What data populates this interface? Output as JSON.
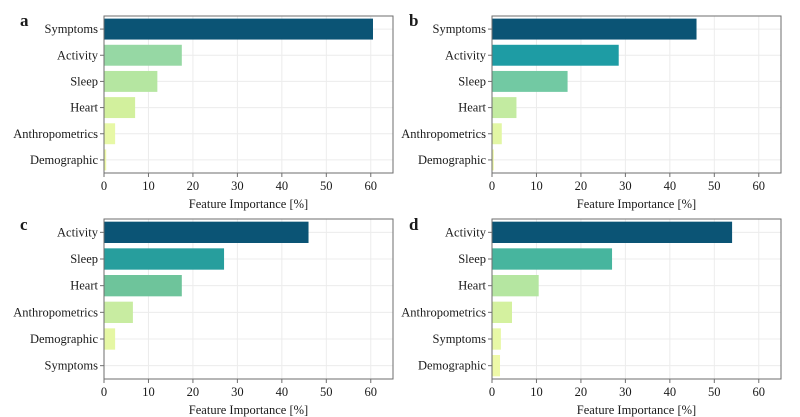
{
  "chart_data": [
    {
      "panel": "a",
      "type": "bar",
      "orientation": "horizontal",
      "categories": [
        "Symptoms",
        "Activity",
        "Sleep",
        "Heart",
        "Anthropometrics",
        "Demographic"
      ],
      "values": [
        60.5,
        17.5,
        12,
        7,
        2.5,
        0.5
      ],
      "colors": [
        "#0b5475",
        "#96d8a4",
        "#b5e6a1",
        "#d2f09d",
        "#e7f8a6",
        "#eef9a8"
      ],
      "xlabel": "Feature Importance [%]",
      "xlim": [
        0,
        65
      ],
      "xticks": [
        0,
        10,
        20,
        30,
        40,
        50,
        60
      ]
    },
    {
      "panel": "b",
      "type": "bar",
      "orientation": "horizontal",
      "categories": [
        "Symptoms",
        "Activity",
        "Sleep",
        "Heart",
        "Anthropometrics",
        "Demographic"
      ],
      "values": [
        46,
        28.5,
        17,
        5.5,
        2.2,
        0.4
      ],
      "colors": [
        "#0b5475",
        "#1e9ca4",
        "#72c9a3",
        "#c3eba1",
        "#e2f6a4",
        "#eef9a8"
      ],
      "xlabel": "Feature Importance [%]",
      "xlim": [
        0,
        65
      ],
      "xticks": [
        0,
        10,
        20,
        30,
        40,
        50,
        60
      ]
    },
    {
      "panel": "c",
      "type": "bar",
      "orientation": "horizontal",
      "categories": [
        "Activity",
        "Sleep",
        "Heart",
        "Anthropometrics",
        "Demographic",
        "Symptoms"
      ],
      "values": [
        46,
        27,
        17.5,
        6.5,
        2.5,
        0
      ],
      "colors": [
        "#0b5475",
        "#279e9d",
        "#6ec49b",
        "#c8eca1",
        "#e5f7a4",
        "#eef9a8"
      ],
      "xlabel": "Feature Importance [%]",
      "xlim": [
        0,
        65
      ],
      "xticks": [
        0,
        10,
        20,
        30,
        40,
        50,
        60
      ]
    },
    {
      "panel": "d",
      "type": "bar",
      "orientation": "horizontal",
      "categories": [
        "Activity",
        "Sleep",
        "Heart",
        "Anthropometrics",
        "Symptoms",
        "Demographic"
      ],
      "values": [
        54,
        27,
        10.5,
        4.5,
        2,
        1.8
      ],
      "colors": [
        "#0b5475",
        "#47b59e",
        "#b5e6a1",
        "#d4f19f",
        "#e7f8a6",
        "#eef9a8"
      ],
      "xlabel": "Feature Importance [%]",
      "xlim": [
        0,
        65
      ],
      "xticks": [
        0,
        10,
        20,
        30,
        40,
        50,
        60
      ]
    }
  ]
}
